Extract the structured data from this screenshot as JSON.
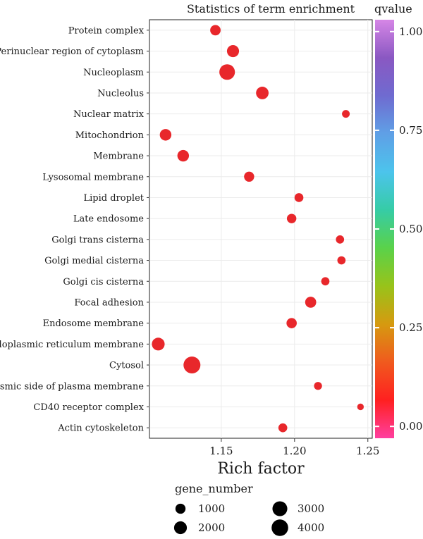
{
  "chart_data": {
    "type": "scatter",
    "title": "Statistics of term enrichment",
    "xlabel": "Rich factor",
    "ylabel": "",
    "xlim": [
      1.101,
      1.253
    ],
    "x_ticks": [
      "1.15",
      "1.20",
      "1.25"
    ],
    "x_tick_values": [
      1.15,
      1.2,
      1.25
    ],
    "grid": true,
    "legend_position": "right, bottom",
    "categories": [
      "Protein complex",
      "Perinuclear region of cytoplasm",
      "Nucleoplasm",
      "Nucleolus",
      "Nuclear matrix",
      "Mitochondrion",
      "Membrane",
      "Lysosomal membrane",
      "Lipid droplet",
      "Late endosome",
      "Golgi trans cisterna",
      "Golgi medial cisterna",
      "Golgi cis cisterna",
      "Focal adhesion",
      "Endosome membrane",
      "Endoplasmic reticulum membrane",
      "Cytosol",
      "Cytoplasmic side of plasma membrane",
      "CD40 receptor complex",
      "Actin cytoskeleton"
    ],
    "points": [
      {
        "term": "Protein complex",
        "rich_factor": 1.146,
        "gene_number": 1100,
        "qvalue": 0.0
      },
      {
        "term": "Perinuclear region of cytoplasm",
        "rich_factor": 1.158,
        "gene_number": 1700,
        "qvalue": 0.0
      },
      {
        "term": "Nucleoplasm",
        "rich_factor": 1.154,
        "gene_number": 3400,
        "qvalue": 0.0
      },
      {
        "term": "Nucleolus",
        "rich_factor": 1.178,
        "gene_number": 1900,
        "qvalue": 0.0
      },
      {
        "term": "Nuclear matrix",
        "rich_factor": 1.235,
        "gene_number": 400,
        "qvalue": 0.0
      },
      {
        "term": "Mitochondrion",
        "rich_factor": 1.112,
        "gene_number": 1500,
        "qvalue": 0.0
      },
      {
        "term": "Membrane",
        "rich_factor": 1.124,
        "gene_number": 1500,
        "qvalue": 0.0
      },
      {
        "term": "Lysosomal membrane",
        "rich_factor": 1.169,
        "gene_number": 1000,
        "qvalue": 0.0
      },
      {
        "term": "Lipid droplet",
        "rich_factor": 1.203,
        "gene_number": 650,
        "qvalue": 0.0
      },
      {
        "term": "Late endosome",
        "rich_factor": 1.198,
        "gene_number": 800,
        "qvalue": 0.0
      },
      {
        "term": "Golgi trans cisterna",
        "rich_factor": 1.231,
        "gene_number": 500,
        "qvalue": 0.0
      },
      {
        "term": "Golgi medial cisterna",
        "rich_factor": 1.232,
        "gene_number": 500,
        "qvalue": 0.0
      },
      {
        "term": "Golgi cis cisterna",
        "rich_factor": 1.221,
        "gene_number": 500,
        "qvalue": 0.0
      },
      {
        "term": "Focal adhesion",
        "rich_factor": 1.211,
        "gene_number": 1300,
        "qvalue": 0.0
      },
      {
        "term": "Endosome membrane",
        "rich_factor": 1.198,
        "gene_number": 1050,
        "qvalue": 0.0
      },
      {
        "term": "Endoplasmic reticulum membrane",
        "rich_factor": 1.107,
        "gene_number": 2000,
        "qvalue": 0.0
      },
      {
        "term": "Cytosol",
        "rich_factor": 1.13,
        "gene_number": 4200,
        "qvalue": 0.0
      },
      {
        "term": "Cytoplasmic side of plasma membrane",
        "rich_factor": 1.216,
        "gene_number": 450,
        "qvalue": 0.0
      },
      {
        "term": "CD40 receptor complex",
        "rich_factor": 1.245,
        "gene_number": 200,
        "qvalue": 0.0
      },
      {
        "term": "Actin cytoskeleton",
        "rich_factor": 1.192,
        "gene_number": 650,
        "qvalue": 0.0
      }
    ],
    "color_scale": {
      "title": "qvalue",
      "ticks": [
        "0.00",
        "0.25",
        "0.50",
        "0.75",
        "1.00"
      ],
      "tick_values": [
        0.0,
        0.25,
        0.5,
        0.75,
        1.0
      ],
      "range": [
        -0.03,
        1.03
      ],
      "colors": [
        "#ff3fa0",
        "#ff2020",
        "#f05a1e",
        "#d69a10",
        "#98c31a",
        "#5ad24a",
        "#36cca6",
        "#4cc4ec",
        "#5fa0e6",
        "#6f6bd0",
        "#8a58c2",
        "#d686e6"
      ]
    },
    "size_legend": {
      "title": "gene_number",
      "values": [
        1000,
        2000,
        3000,
        4000
      ],
      "labels": [
        "1000",
        "2000",
        "3000",
        "4000"
      ]
    },
    "point_color": "#e8272b"
  }
}
